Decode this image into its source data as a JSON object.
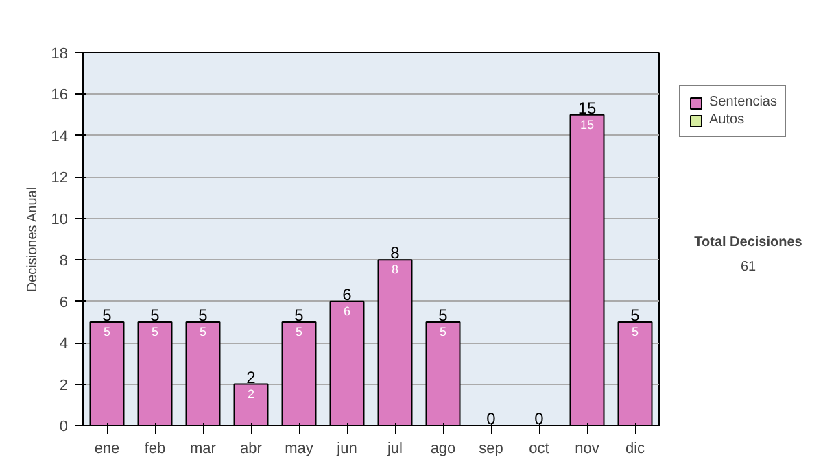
{
  "chart_data": {
    "type": "bar",
    "stacked": true,
    "ylabel": "Decisiones Anual",
    "categories": [
      "ene",
      "feb",
      "mar",
      "abr",
      "may",
      "jun",
      "jul",
      "ago",
      "sep",
      "oct",
      "nov",
      "dic"
    ],
    "series": [
      {
        "name": "Sentencias",
        "color": "#dc7cc0",
        "values": [
          5,
          5,
          5,
          2,
          5,
          6,
          8,
          5,
          0,
          0,
          15,
          5
        ],
        "value_labels": [
          "5",
          "5",
          "5",
          "2",
          "5",
          "6",
          "8",
          "5",
          null,
          null,
          "15",
          "5"
        ]
      },
      {
        "name": "Autos",
        "color": "#d6eca0",
        "values": [
          0,
          0,
          0,
          0,
          0,
          0,
          0,
          0,
          0,
          0,
          0,
          0
        ],
        "value_labels": [
          null,
          null,
          null,
          null,
          null,
          null,
          null,
          null,
          null,
          null,
          null,
          null
        ]
      }
    ],
    "totals": [
      "5",
      "5",
      "5",
      "2",
      "5",
      "6",
      "8",
      "5",
      "0",
      "0",
      "15",
      "5"
    ],
    "ylim": [
      0,
      18
    ],
    "yticks": [
      0,
      2,
      4,
      6,
      8,
      10,
      12,
      14,
      16,
      18
    ],
    "grid": "y",
    "legend": "right",
    "annotations": [
      "Total Decisiones",
      "61"
    ]
  }
}
